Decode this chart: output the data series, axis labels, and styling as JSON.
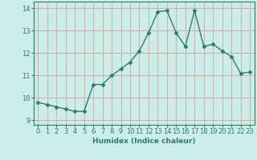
{
  "x": [
    0,
    1,
    2,
    3,
    4,
    5,
    6,
    7,
    8,
    9,
    10,
    11,
    12,
    13,
    14,
    15,
    16,
    17,
    18,
    19,
    20,
    21,
    22,
    23
  ],
  "y": [
    9.8,
    9.7,
    9.6,
    9.5,
    9.4,
    9.4,
    10.6,
    10.6,
    11.0,
    11.3,
    11.6,
    12.1,
    12.9,
    13.85,
    13.9,
    12.9,
    12.3,
    13.9,
    12.3,
    12.4,
    12.1,
    11.85,
    11.1,
    11.15
  ],
  "line_color": "#2d7c6e",
  "marker": "D",
  "marker_size": 2.5,
  "bg_color": "#cceee8",
  "grid_color": "#d9a0a0",
  "xlabel": "Humidex (Indice chaleur)",
  "ylim": [
    8.8,
    14.3
  ],
  "xlim": [
    -0.5,
    23.5
  ],
  "yticks": [
    9,
    10,
    11,
    12,
    13,
    14
  ],
  "xticks": [
    0,
    1,
    2,
    3,
    4,
    5,
    6,
    7,
    8,
    9,
    10,
    11,
    12,
    13,
    14,
    15,
    16,
    17,
    18,
    19,
    20,
    21,
    22,
    23
  ],
  "xlabel_fontsize": 6.5,
  "tick_fontsize": 6.0,
  "line_width": 1.0
}
